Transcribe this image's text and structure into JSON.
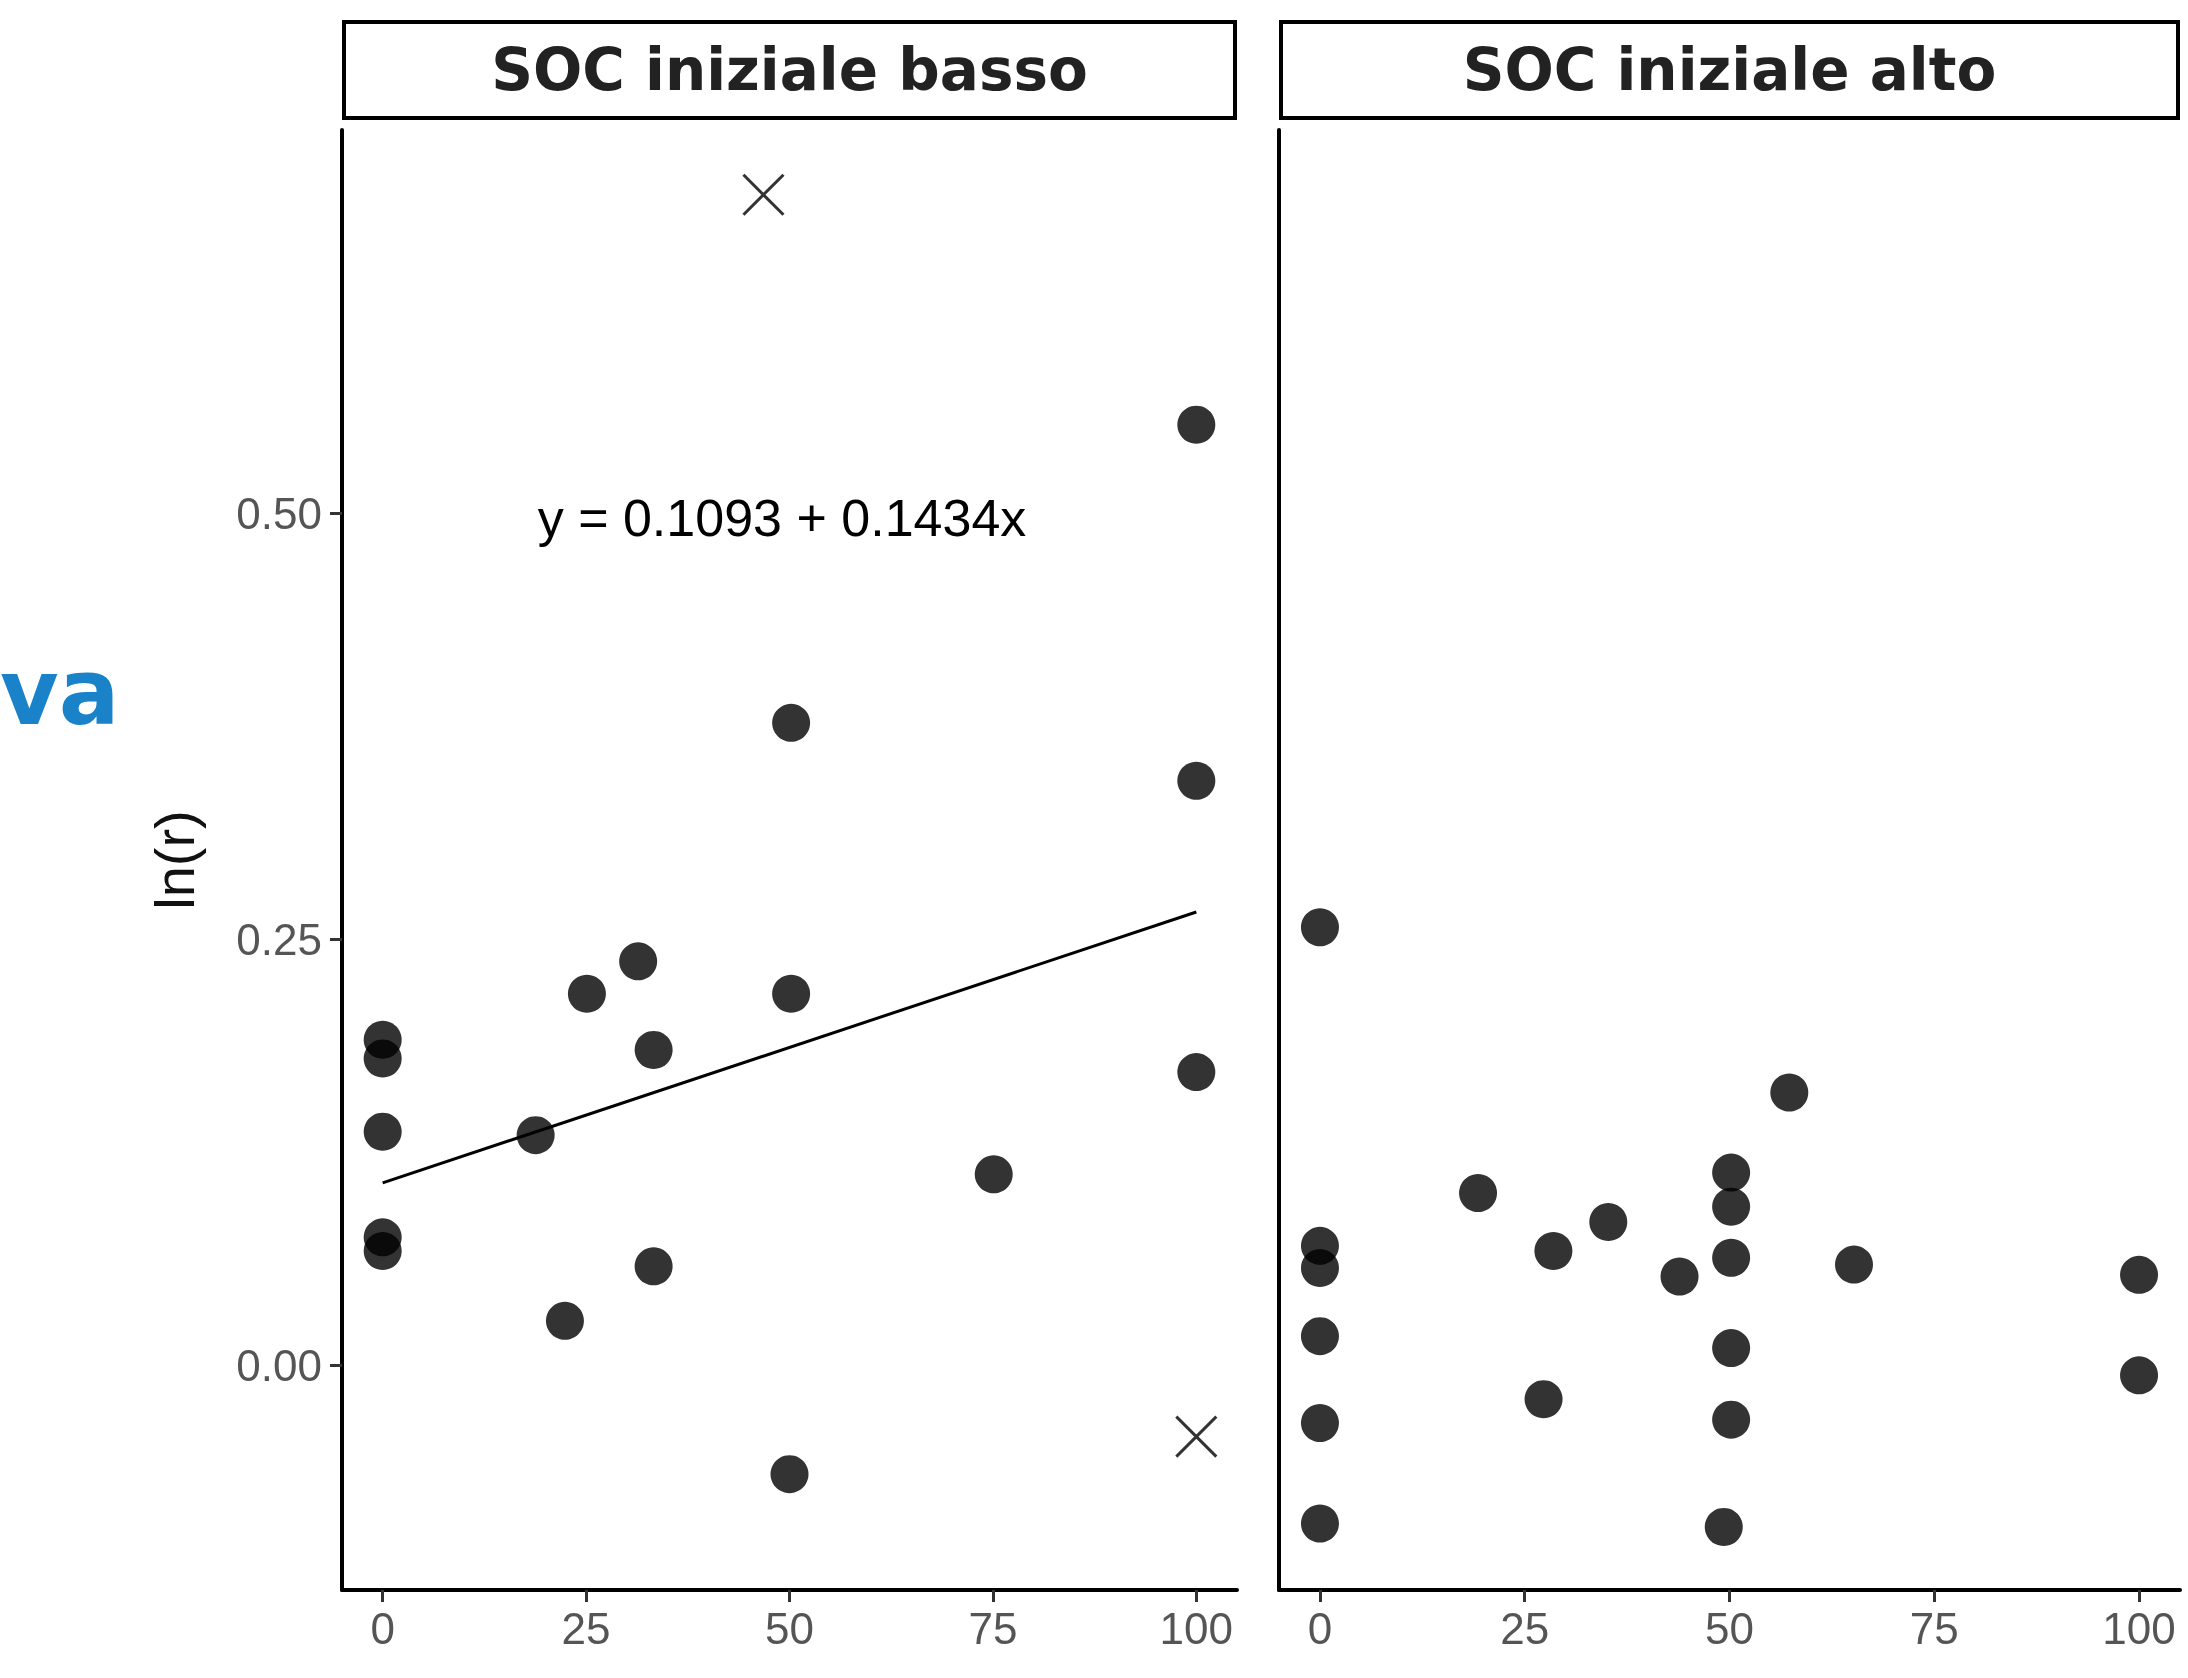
{
  "chart_data": [
    {
      "type": "scatter",
      "title": "SOC iniziale basso",
      "ylabel": "ln(r)",
      "annotations": [
        "va",
        "y = 0.1093 + 0.1434x"
      ],
      "xlim": [
        -5,
        105
      ],
      "xticks": [
        0,
        25,
        50,
        75,
        100
      ],
      "ylim": [
        -0.132,
        0.725
      ],
      "yticks": [
        {
          "value": 0,
          "label": "0.00"
        },
        {
          "value": 0.25,
          "label": "0.25"
        },
        {
          "value": 0.5,
          "label": "0.50"
        }
      ],
      "grid": false,
      "series": [
        {
          "color": "#000000",
          "x": [
            0,
            0,
            0,
            0,
            0,
            18.8,
            25.1,
            31.4,
            33.3,
            33.3,
            22.4,
            50.2,
            50.2,
            50,
            75.1,
            100,
            100,
            100
          ],
          "values": [
            0.191,
            0.18,
            0.137,
            0.075,
            0.067,
            0.135,
            0.218,
            0.237,
            0.185,
            0.058,
            0.026,
            0.218,
            0.377,
            -0.064,
            0.112,
            0.343,
            0.172,
            0.552
          ]
        },
        {
          "marker": "cross",
          "color": "#000000",
          "x": [
            46.8,
            100
          ],
          "values": [
            0.687,
            -0.042
          ]
        },
        {
          "type": "line",
          "color": "#000000",
          "x": [
            0,
            100
          ],
          "values": [
            0.107,
            0.266
          ]
        }
      ]
    },
    {
      "type": "scatter",
      "title": "SOC iniziale alto",
      "xlim": [
        -5,
        105
      ],
      "xticks": [
        0,
        25,
        50,
        75,
        100
      ],
      "ylim": [
        -0.132,
        0.725
      ],
      "tick_labels": "x",
      "grid": false,
      "series": [
        {
          "color": "#000000",
          "x": [
            0,
            0,
            0,
            0,
            0,
            0,
            19.3,
            27.3,
            28.5,
            35.2,
            43.9,
            50.2,
            50.2,
            50.2,
            50.2,
            50.2,
            49.3,
            57.3,
            65.2,
            100,
            100
          ],
          "values": [
            0.257,
            0.07,
            0.057,
            0.017,
            -0.034,
            -0.093,
            0.101,
            -0.02,
            0.067,
            0.084,
            0.052,
            0.113,
            0.093,
            0.063,
            0.01,
            -0.032,
            -0.095,
            0.16,
            0.059,
            0.053,
            -0.006
          ]
        }
      ]
    }
  ]
}
